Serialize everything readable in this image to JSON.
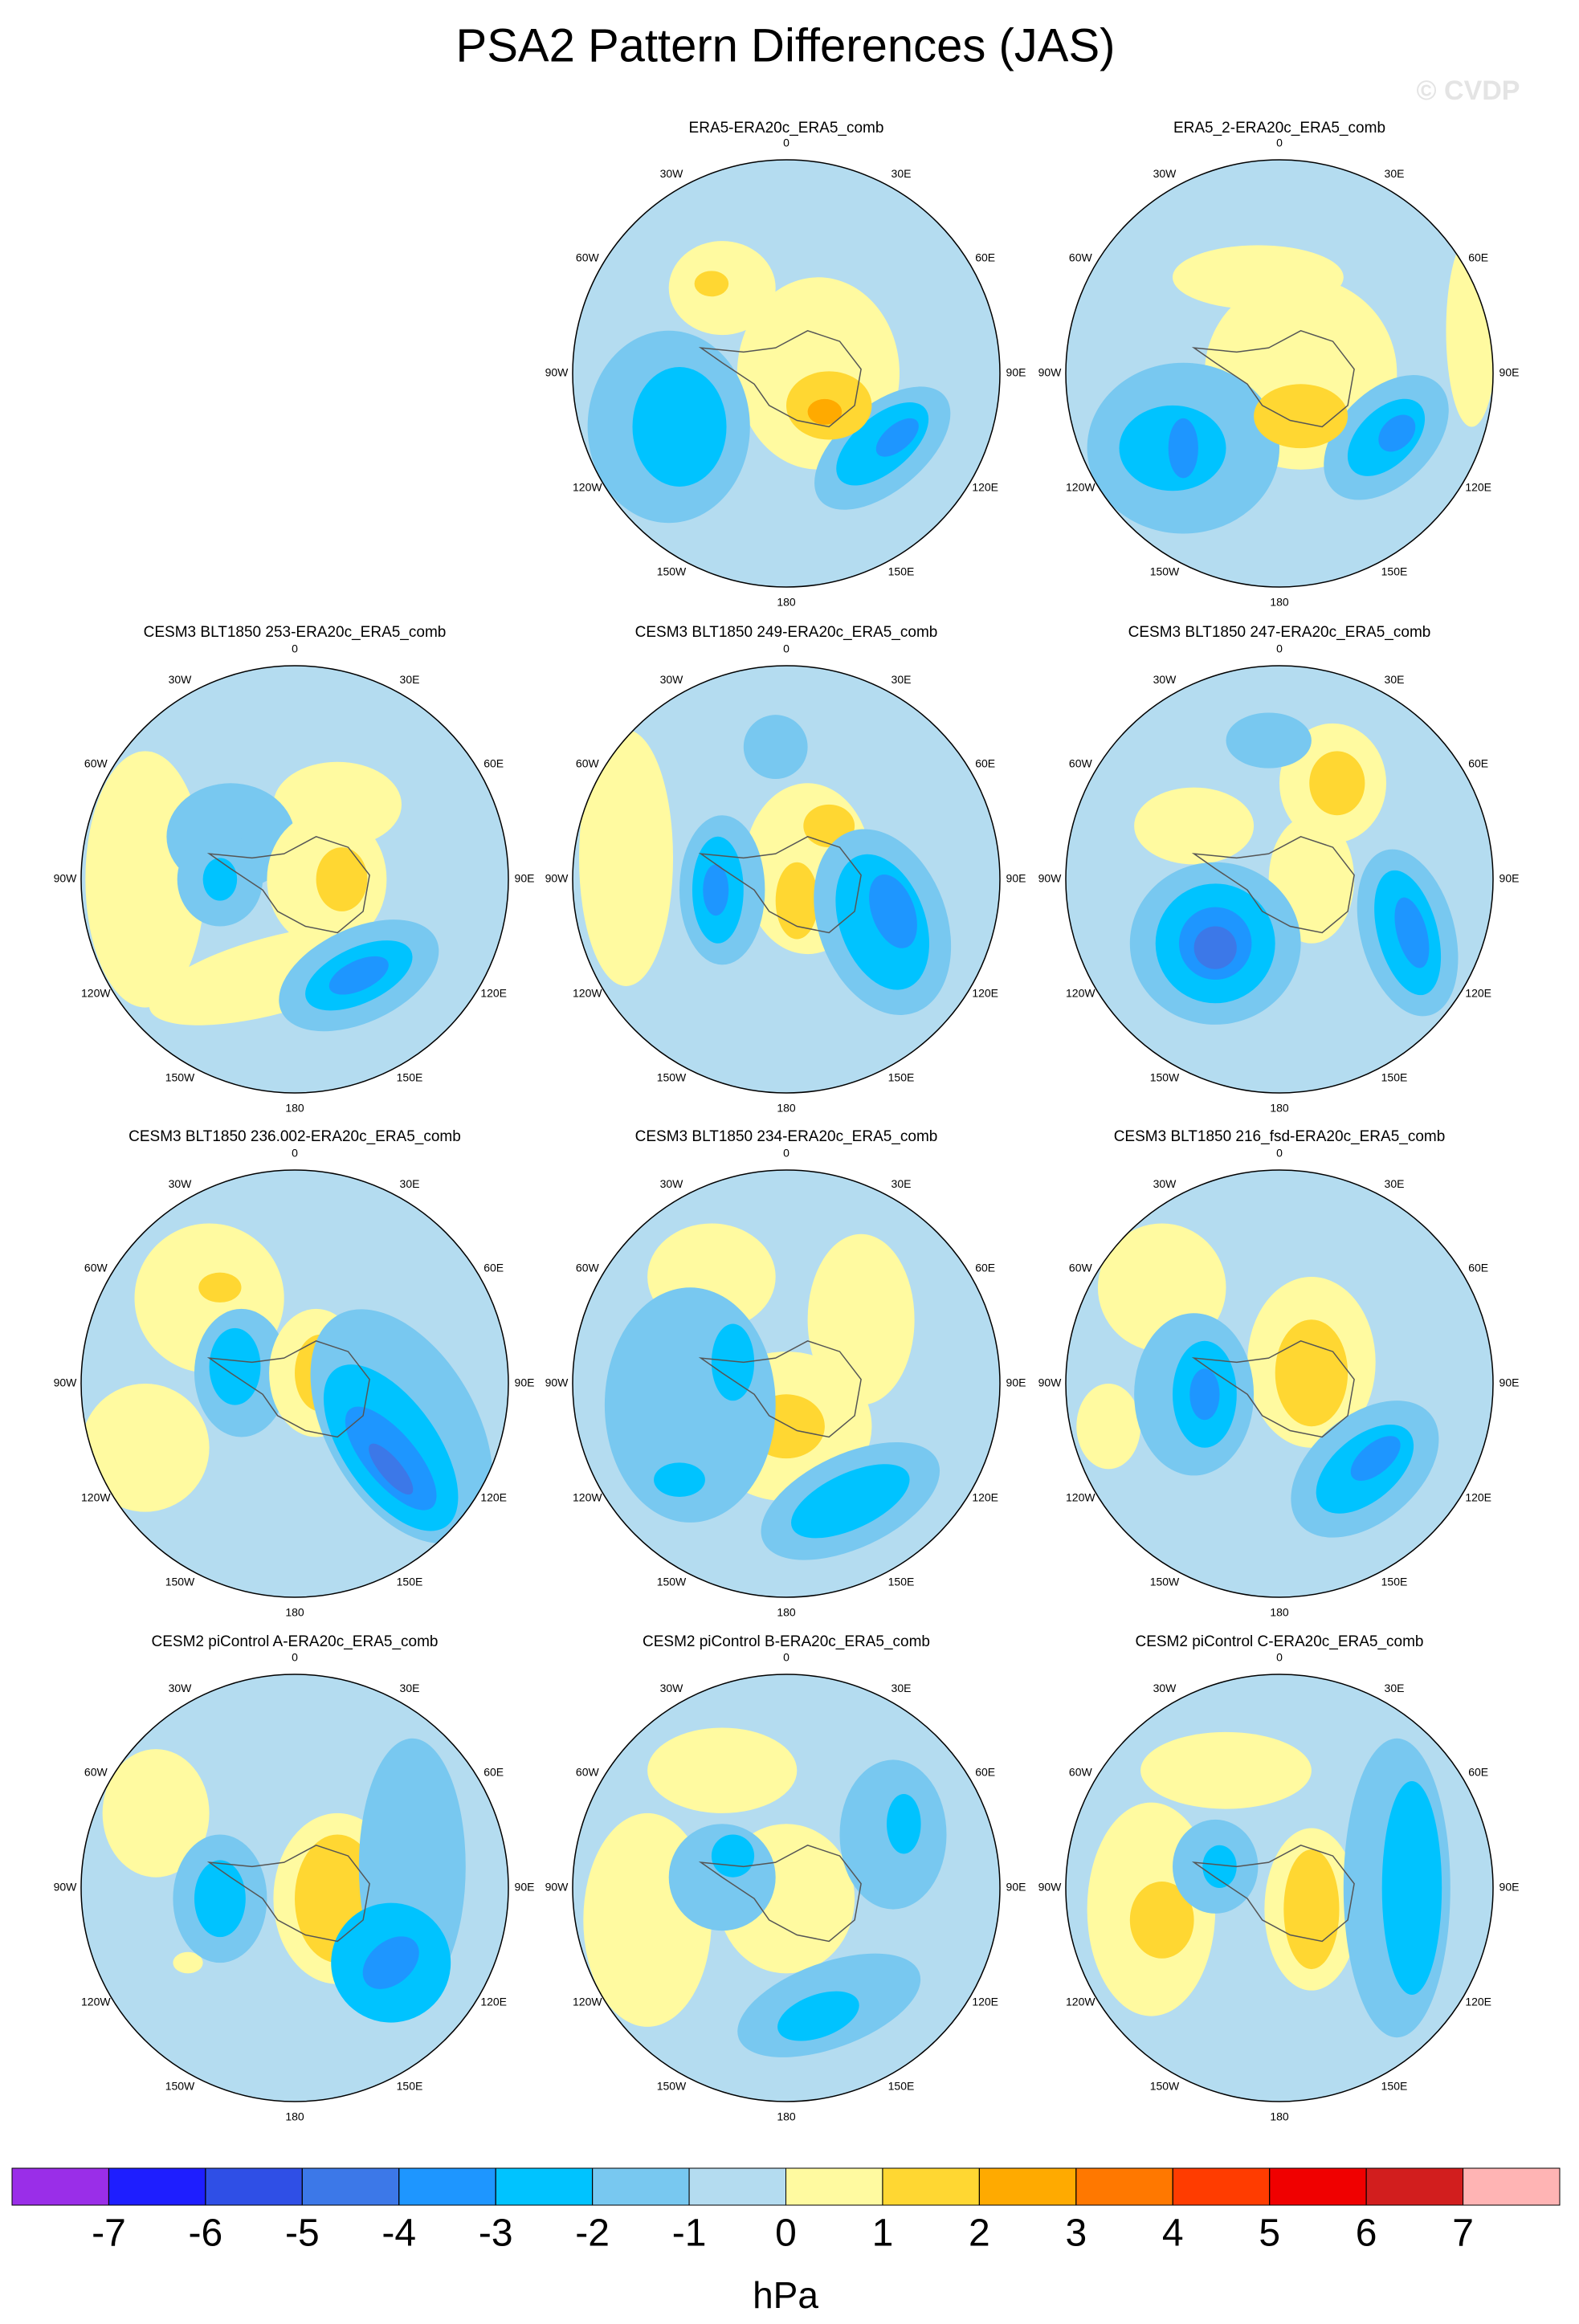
{
  "title": "PSA2 Pattern Differences (JAS)",
  "watermark": "© CVDP",
  "longitude_labels": [
    "0",
    "30E",
    "60E",
    "90E",
    "120E",
    "150E",
    "180",
    "150W",
    "120W",
    "90W",
    "60W",
    "30W"
  ],
  "panels": [
    {
      "title": "ERA5-ERA20c_ERA5_comb"
    },
    {
      "title": "ERA5_2-ERA20c_ERA5_comb"
    },
    {
      "title": "CESM3 BLT1850 253-ERA20c_ERA5_comb"
    },
    {
      "title": "CESM3 BLT1850 249-ERA20c_ERA5_comb"
    },
    {
      "title": "CESM3 BLT1850 247-ERA20c_ERA5_comb"
    },
    {
      "title": "CESM3 BLT1850 236.002-ERA20c_ERA5_comb"
    },
    {
      "title": "CESM3 BLT1850 234-ERA20c_ERA5_comb"
    },
    {
      "title": "CESM3 BLT1850 216_fsd-ERA20c_ERA5_comb"
    },
    {
      "title": "CESM2 piControl A-ERA20c_ERA5_comb"
    },
    {
      "title": "CESM2 piControl B-ERA20c_ERA5_comb"
    },
    {
      "title": "CESM2 piControl C-ERA20c_ERA5_comb"
    }
  ],
  "colorbar": {
    "colors": [
      "#9a2ee8",
      "#1e1eff",
      "#2f4fe6",
      "#3c78e8",
      "#1e96ff",
      "#00c3ff",
      "#78c8f0",
      "#b4dcf0",
      "#fffaa0",
      "#ffd732",
      "#ffaa00",
      "#ff7800",
      "#ff3c00",
      "#f00000",
      "#d21e1e",
      "#ffb4b4"
    ],
    "ticks": [
      -7,
      -6,
      -5,
      -4,
      -3,
      -2,
      -1,
      0,
      1,
      2,
      3,
      4,
      5,
      6,
      7
    ],
    "unit": "hPa"
  }
}
